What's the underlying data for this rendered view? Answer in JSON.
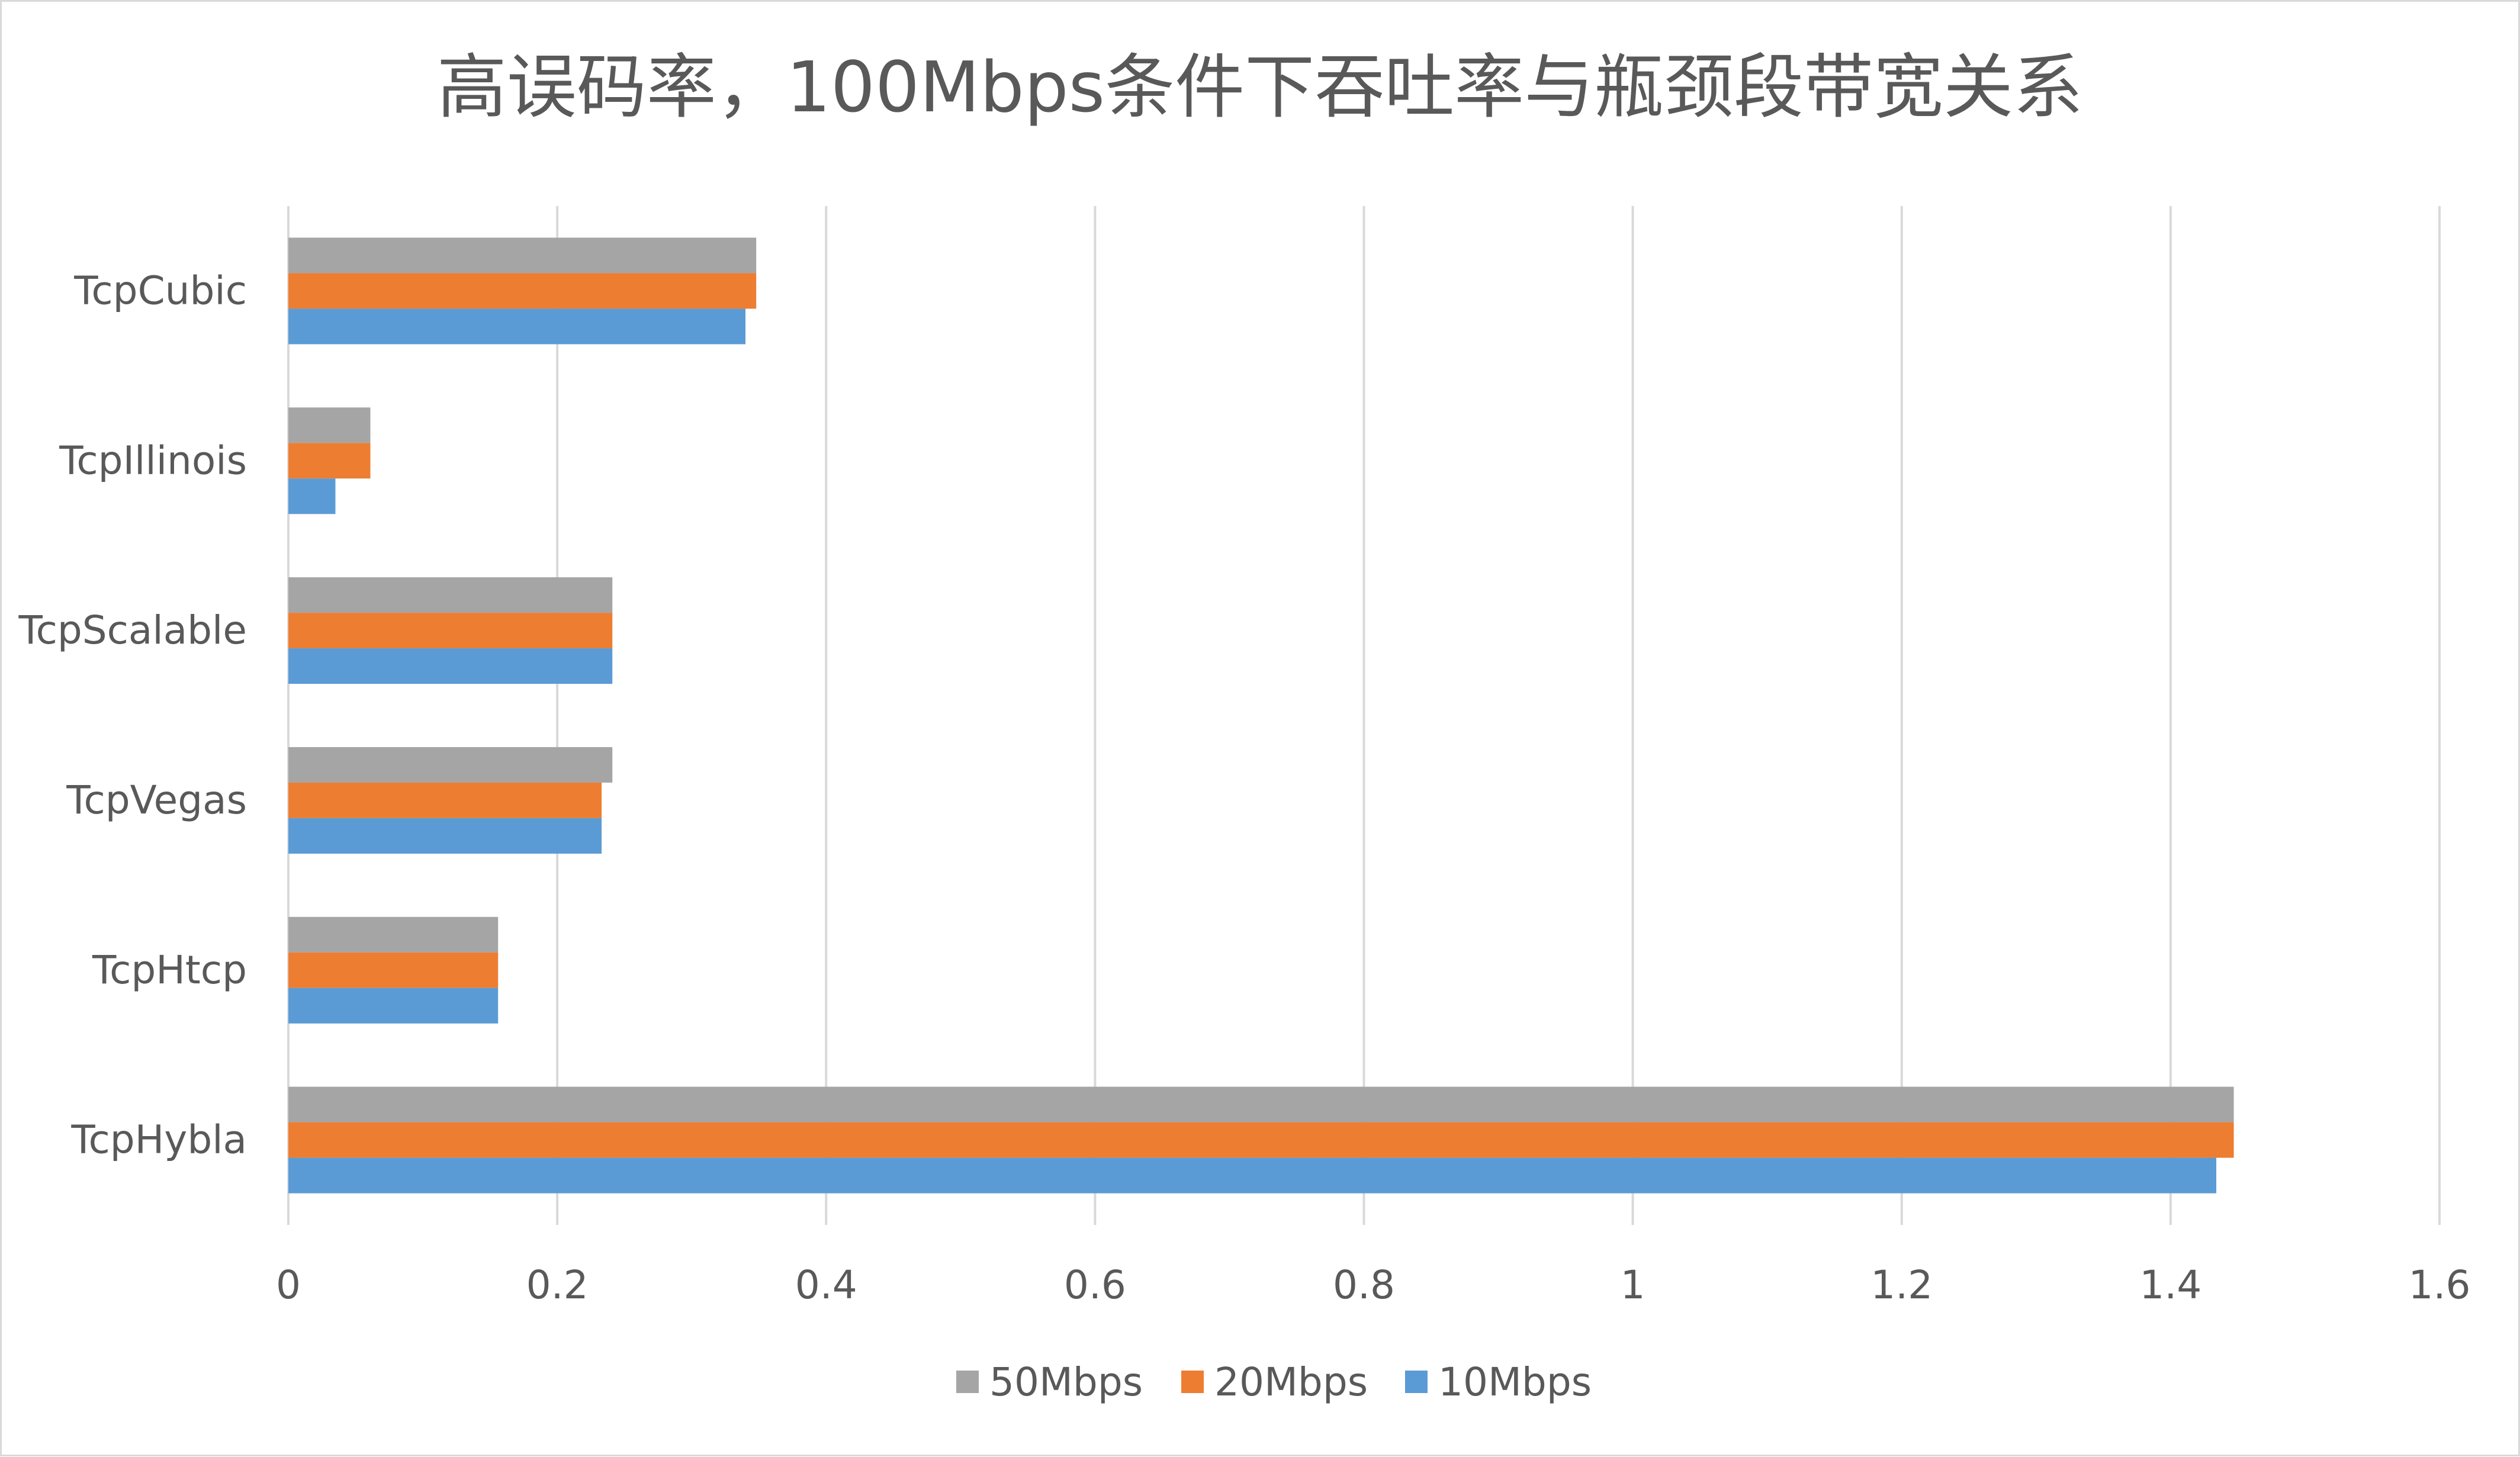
{
  "chart_data": {
    "type": "bar",
    "orientation": "horizontal",
    "title": "高误码率，100Mbps条件下吞吐率与瓶颈段带宽关系",
    "xlabel": "",
    "ylabel": "",
    "categories": [
      "TcpCubic",
      "TcpIllinois",
      "TcpScalable",
      "TcpVegas",
      "TcpHtcp",
      "TcpHybla"
    ],
    "xlim": [
      0,
      1.6
    ],
    "x_ticks": [
      0,
      0.2,
      0.4,
      0.6,
      0.8,
      1,
      1.2,
      1.4,
      1.6
    ],
    "x_tick_labels": [
      "0",
      "0.2",
      "0.4",
      "0.6",
      "0.8",
      "1",
      "1.2",
      "1.4",
      "1.6"
    ],
    "grid": true,
    "legend_position": "bottom",
    "series": [
      {
        "name": "50Mbps",
        "color": "#a5a5a5",
        "values": [
          0.348,
          0.061,
          0.241,
          0.241,
          0.156,
          1.447
        ]
      },
      {
        "name": "20Mbps",
        "color": "#ed7d31",
        "values": [
          0.348,
          0.061,
          0.241,
          0.233,
          0.156,
          1.447
        ]
      },
      {
        "name": "10Mbps",
        "color": "#5b9bd5",
        "values": [
          0.34,
          0.035,
          0.241,
          0.233,
          0.156,
          1.434
        ]
      }
    ]
  }
}
